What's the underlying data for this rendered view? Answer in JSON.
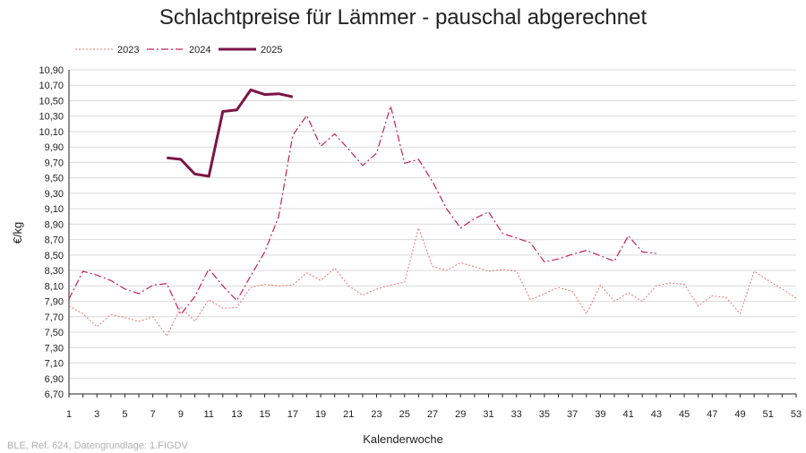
{
  "header": {
    "title": "Schlachtpreise für Lämmer - pauschal abgerechnet"
  },
  "footer": {
    "source": "BLE, Ref. 624, Datengrundlage: 1.FIGDV"
  },
  "colors": {
    "s2023": "#e8756a",
    "s2024": "#c4215a",
    "s2025": "#7b1448",
    "grid": "#d9d9d9",
    "axis": "#222222"
  },
  "chart_data": {
    "type": "line",
    "title": "Schlachtpreise für Lämmer - pauschal abgerechnet",
    "xlabel": "Kalenderwoche",
    "ylabel": "€/kg",
    "xlim": [
      1,
      53
    ],
    "ylim": [
      6.7,
      10.9
    ],
    "x_ticks": [
      1,
      3,
      5,
      7,
      9,
      11,
      13,
      15,
      17,
      19,
      21,
      23,
      25,
      27,
      29,
      31,
      33,
      35,
      37,
      39,
      41,
      43,
      45,
      47,
      49,
      51,
      53
    ],
    "y_ticks": [
      "6,70",
      "6,90",
      "7,10",
      "7,30",
      "7,50",
      "7,70",
      "7,90",
      "8,10",
      "8,30",
      "8,50",
      "8,70",
      "8,90",
      "9,10",
      "9,30",
      "9,50",
      "9,70",
      "9,90",
      "10,10",
      "10,30",
      "10,50",
      "10,70",
      "10,90"
    ],
    "grid": "horizontal",
    "legend_position": "top-left",
    "series": [
      {
        "name": "2023",
        "style": "dotted",
        "x": [
          1,
          2,
          3,
          4,
          5,
          6,
          7,
          8,
          9,
          10,
          11,
          12,
          13,
          14,
          15,
          16,
          17,
          18,
          19,
          20,
          21,
          22,
          23,
          24,
          25,
          26,
          27,
          28,
          29,
          30,
          31,
          32,
          33,
          34,
          35,
          36,
          37,
          38,
          39,
          40,
          41,
          42,
          43,
          44,
          45,
          46,
          47,
          48,
          49,
          50,
          51,
          52,
          53
        ],
        "values": [
          7.84,
          7.74,
          7.57,
          7.73,
          7.69,
          7.64,
          7.7,
          7.45,
          7.83,
          7.64,
          7.92,
          7.81,
          7.82,
          8.08,
          8.12,
          8.1,
          8.11,
          8.27,
          8.17,
          8.33,
          8.1,
          7.98,
          8.06,
          8.11,
          8.15,
          8.85,
          8.35,
          8.3,
          8.4,
          8.35,
          8.29,
          8.31,
          8.29,
          7.92,
          8.0,
          8.08,
          8.03,
          7.74,
          8.11,
          7.9,
          8.01,
          7.9,
          8.1,
          8.14,
          8.12,
          7.84,
          7.97,
          7.95,
          7.74,
          8.29,
          8.17,
          8.06,
          7.94
        ]
      },
      {
        "name": "2024",
        "style": "dash-dot",
        "x": [
          1,
          2,
          3,
          4,
          5,
          6,
          7,
          8,
          9,
          10,
          11,
          12,
          13,
          14,
          15,
          16,
          17,
          18,
          19,
          20,
          21,
          22,
          23,
          24,
          25,
          26,
          27,
          28,
          29,
          30,
          31,
          32,
          33,
          34,
          35,
          36,
          37,
          38,
          39,
          40,
          41,
          42,
          43
        ],
        "values": [
          7.93,
          8.29,
          8.24,
          8.17,
          8.06,
          8.0,
          8.11,
          8.13,
          7.73,
          7.96,
          8.32,
          8.1,
          7.91,
          8.23,
          8.54,
          9.0,
          10.05,
          10.31,
          9.91,
          10.07,
          9.87,
          9.66,
          9.82,
          10.43,
          9.69,
          9.74,
          9.45,
          9.1,
          8.85,
          8.97,
          9.06,
          8.78,
          8.72,
          8.66,
          8.41,
          8.45,
          8.51,
          8.56,
          8.49,
          8.42,
          8.75,
          8.54,
          8.52
        ]
      },
      {
        "name": "2025",
        "style": "solid",
        "x": [
          8,
          9,
          10,
          11,
          12,
          13,
          14,
          15,
          16,
          17
        ],
        "values": [
          9.76,
          9.74,
          9.55,
          9.52,
          10.36,
          10.38,
          10.64,
          10.58,
          10.59,
          10.55
        ]
      }
    ]
  }
}
